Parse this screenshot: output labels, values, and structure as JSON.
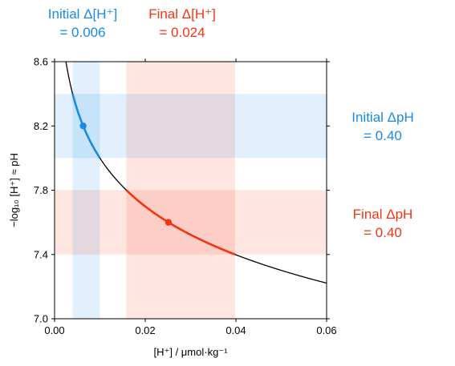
{
  "annotations": {
    "initial_dh": {
      "line1": "Initial Δ[H⁺]",
      "line2": "= 0.006",
      "color": "#1a8ae6"
    },
    "final_dh": {
      "line1": "Final Δ[H⁺]",
      "line2": "= 0.024",
      "color": "#f53311"
    },
    "initial_dph": {
      "line1": "Initial ΔpH",
      "line2": "= 0.40",
      "color": "#1a8ae6"
    },
    "final_dph": {
      "line1": "Final ΔpH",
      "line2": "= 0.40",
      "color": "#f53311"
    }
  },
  "chart_data": {
    "type": "line",
    "xlabel": "[H⁺] / μmol·kg⁻¹",
    "ylabel": "−log₁₀ [H⁺] ≈ pH",
    "xlim": [
      0,
      0.06
    ],
    "ylim": [
      7.0,
      8.6
    ],
    "xticks": [
      "0.00",
      "0.02",
      "0.04",
      "0.06"
    ],
    "yticks": [
      "7.0",
      "7.4",
      "7.8",
      "8.2",
      "8.6"
    ],
    "curve": "y = -log10(x) + 6",
    "bands": {
      "initial": {
        "x_range": [
          0.00398,
          0.01
        ],
        "y_range": [
          8.0,
          8.4
        ],
        "color": "#1a8ae6"
      },
      "final": {
        "x_range": [
          0.01585,
          0.0398
        ],
        "y_range": [
          7.4,
          7.8
        ],
        "color": "#f53311"
      }
    },
    "points": [
      {
        "x": 0.00631,
        "y": 8.2,
        "color": "#1a8ae6"
      },
      {
        "x": 0.02512,
        "y": 7.6,
        "color": "#f53311"
      }
    ],
    "highlight_segments": [
      {
        "y_range": [
          8.0,
          8.4
        ],
        "color": "#1a8ae6"
      },
      {
        "y_range": [
          7.4,
          7.8
        ],
        "color": "#f53311"
      }
    ]
  }
}
